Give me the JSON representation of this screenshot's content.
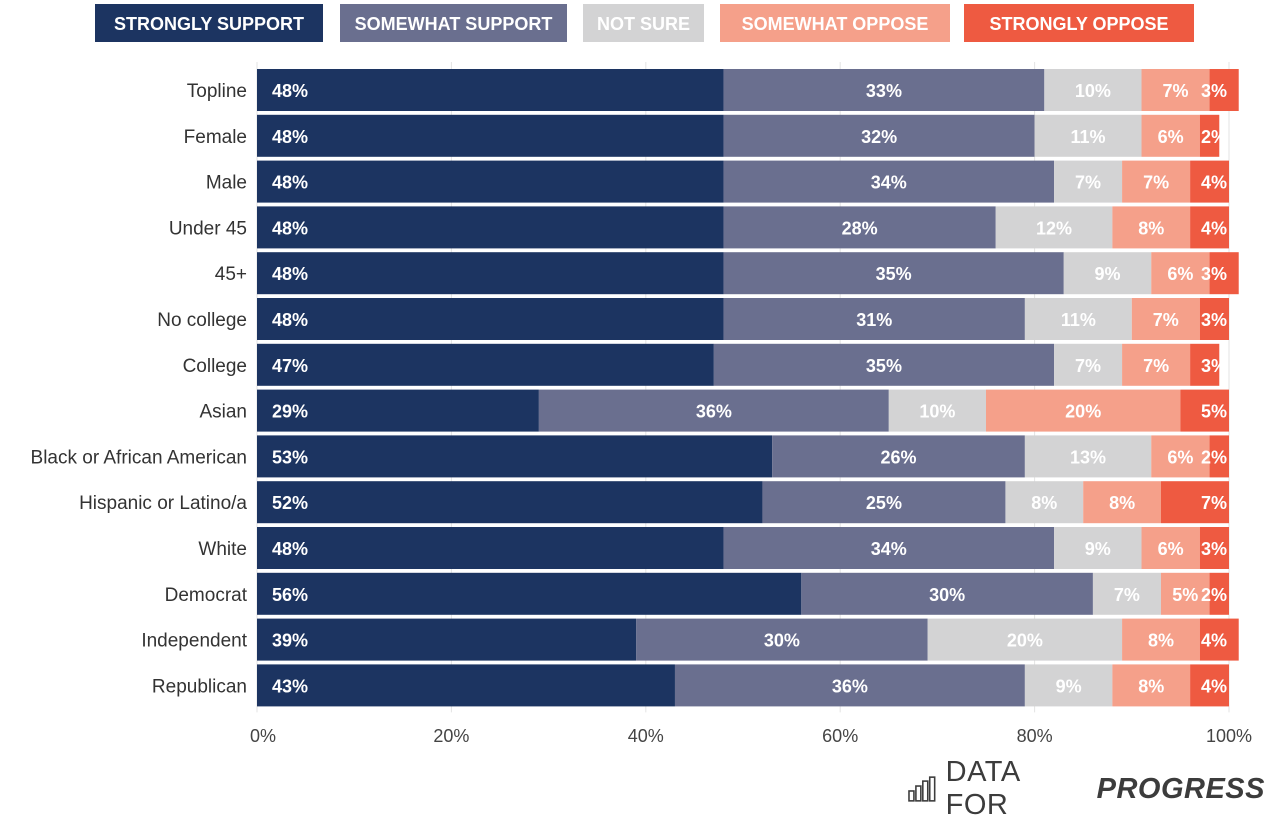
{
  "chart_data": {
    "type": "bar",
    "orientation": "horizontal",
    "stacked": true,
    "categories": [
      "Topline",
      "Female",
      "Male",
      "Under 45",
      "45+",
      "No college",
      "College",
      "Asian",
      "Black or African American",
      "Hispanic or Latino/a",
      "White",
      "Democrat",
      "Independent",
      "Republican"
    ],
    "series": [
      {
        "name": "STRONGLY SUPPORT",
        "color": "#1c3461",
        "text_color": "#ffffff",
        "values": [
          48,
          48,
          48,
          48,
          48,
          48,
          47,
          29,
          53,
          52,
          48,
          56,
          39,
          43
        ]
      },
      {
        "name": "SOMEWHAT SUPPORT",
        "color": "#6a6f8f",
        "text_color": "#ffffff",
        "values": [
          33,
          32,
          34,
          28,
          35,
          31,
          35,
          36,
          26,
          25,
          34,
          30,
          30,
          36
        ]
      },
      {
        "name": "NOT SURE",
        "color": "#d3d3d4",
        "text_color": "#ffffff",
        "values": [
          10,
          11,
          7,
          12,
          9,
          11,
          7,
          10,
          13,
          8,
          9,
          7,
          20,
          9
        ]
      },
      {
        "name": "SOMEWHAT OPPOSE",
        "color": "#f5a08a",
        "text_color": "#ffffff",
        "values": [
          7,
          6,
          7,
          8,
          6,
          7,
          7,
          20,
          6,
          8,
          6,
          5,
          8,
          8
        ]
      },
      {
        "name": "STRONGLY OPPOSE",
        "color": "#ee5a41",
        "text_color": "#ffffff",
        "values": [
          3,
          2,
          4,
          4,
          3,
          3,
          3,
          5,
          2,
          7,
          3,
          2,
          4,
          4
        ]
      }
    ],
    "value_suffix": "%",
    "xlim": [
      0,
      100
    ],
    "x_ticks": [
      "0%",
      "20%",
      "40%",
      "60%",
      "80%",
      "100%"
    ],
    "grid": true,
    "legend_position": "top",
    "title": "",
    "xlabel": "",
    "ylabel": ""
  },
  "brand": {
    "prefix": "DATA FOR",
    "emphasis": "PROGRESS",
    "icon": "bar-chart-logo-icon"
  }
}
